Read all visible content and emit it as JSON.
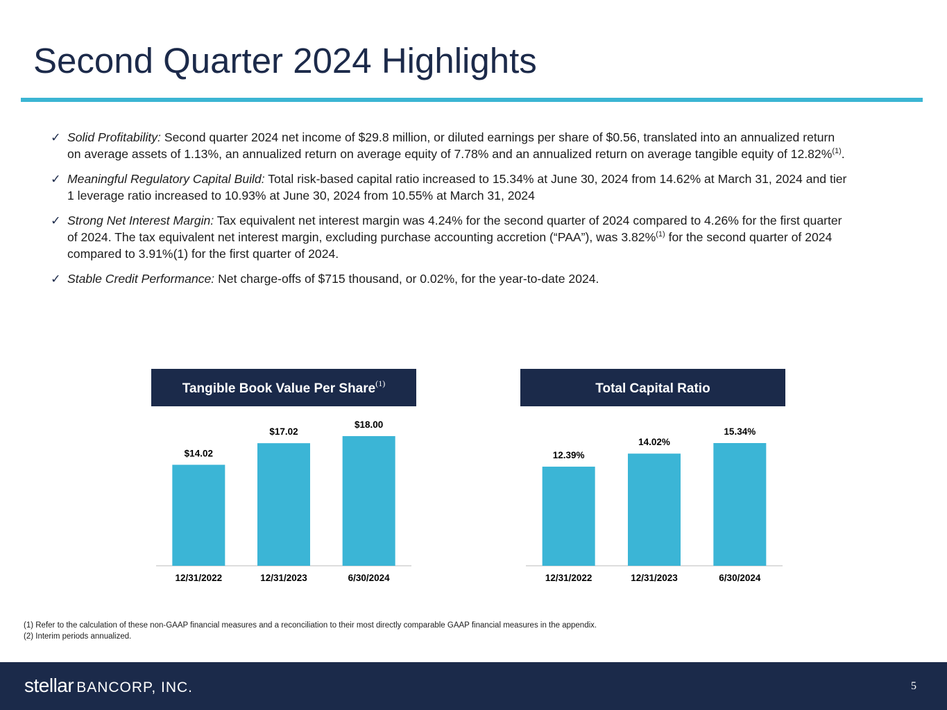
{
  "header": {
    "title": "Second Quarter 2024 Highlights"
  },
  "bullets": [
    {
      "lead": "Solid Profitability:",
      "parts": [
        " Second quarter 2024 net income of $29.8 million, or diluted earnings per share of $0.56, translated into an annualized return on average assets of 1.13%, an annualized return on average equity of 7.78% and an annualized return on average tangible equity of 12.82%",
        {
          "sup": "(1)"
        },
        "."
      ]
    },
    {
      "lead": "Meaningful Regulatory Capital Build:",
      "parts": [
        " Total risk-based capital ratio increased to 15.34% at June 30, 2024 from 14.62% at March 31, 2024 and tier 1 leverage ratio increased to 10.93% at June 30, 2024 from 10.55% at March 31, 2024"
      ]
    },
    {
      "lead": "Strong Net Interest Margin:",
      "parts": [
        " Tax equivalent net interest margin was 4.24% for the second quarter of 2024 compared to 4.26% for the first quarter of 2024. The tax equivalent net interest margin, excluding purchase accounting accretion (“PAA”), was 3.82%",
        {
          "sup": "(1)"
        },
        " for the second quarter of 2024 compared to 3.91%(1) for the first quarter of 2024."
      ]
    },
    {
      "lead": "Stable Credit Performance:",
      "parts": [
        " Net charge-offs of $715 thousand, or 0.02%, for the year-to-date 2024."
      ]
    }
  ],
  "chart_data": [
    {
      "type": "bar",
      "title": "Tangible Book Value Per Share",
      "title_note": "(1)",
      "categories": [
        "12/31/2022",
        "12/31/2023",
        "6/30/2024"
      ],
      "values": [
        14.02,
        17.02,
        18.0
      ],
      "value_labels": [
        "$14.02",
        "$17.02",
        "$18.00"
      ],
      "color": "#3bb5d6"
    },
    {
      "type": "bar",
      "title": "Total Capital Ratio",
      "categories": [
        "12/31/2022",
        "12/31/2023",
        "6/30/2024"
      ],
      "values": [
        12.39,
        14.02,
        15.34
      ],
      "value_labels": [
        "12.39%",
        "14.02%",
        "15.34%"
      ],
      "color": "#3bb5d6"
    }
  ],
  "footnotes": [
    "(1) Refer to the calculation of these non-GAAP financial measures and a reconciliation to their most directly comparable GAAP financial measures in the appendix.",
    "(2) Interim periods annualized."
  ],
  "footer": {
    "logo_main": "stellar",
    "logo_sub": "BANCORP, INC.",
    "page": "5"
  }
}
